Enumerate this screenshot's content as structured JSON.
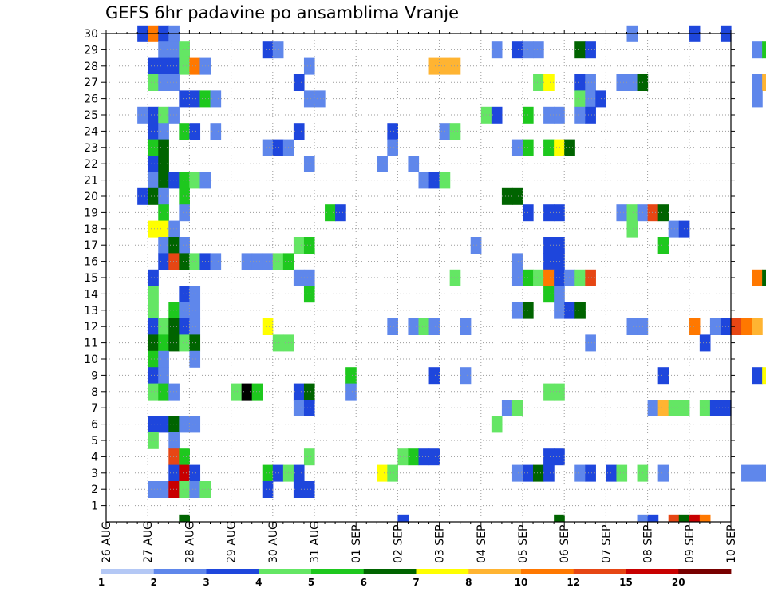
{
  "chart_data": {
    "type": "heatmap",
    "title": "GEFS 6hr padavine po ansamblima Vranje",
    "xlabel": "",
    "ylabel": "",
    "x_tick_labels": [
      "26 AUG",
      "27 AUG",
      "28 AUG",
      "29 AUG",
      "30 AUG",
      "31 AUG",
      "01 SEP",
      "02 SEP",
      "03 SEP",
      "04 SEP",
      "05 SEP",
      "06 SEP",
      "07 SEP",
      "08 SEP",
      "09 SEP",
      "10 SEP"
    ],
    "x_range_days": [
      0,
      15
    ],
    "steps_per_day": 4,
    "y_tick_labels": [
      1,
      2,
      3,
      4,
      5,
      6,
      7,
      8,
      9,
      10,
      11,
      12,
      13,
      14,
      15,
      16,
      17,
      18,
      19,
      20,
      21,
      22,
      23,
      24,
      25,
      26,
      27,
      28,
      29,
      30
    ],
    "y_range": [
      0,
      30
    ],
    "grid": true,
    "colorbar": {
      "levels": [
        "1",
        "2",
        "3",
        "4",
        "5",
        "6",
        "7",
        "8",
        "10",
        "12",
        "15",
        "20"
      ],
      "colors": [
        "#b4c8f5",
        "#5f87eb",
        "#1e46dc",
        "#64e664",
        "#1ec81e",
        "#006400",
        "#ffff00",
        "#ffb432",
        "#ff7800",
        "#e64614",
        "#c80000",
        "#780000"
      ]
    },
    "cells": [
      [
        30,
        0.75,
        2
      ],
      [
        30,
        1.0,
        8
      ],
      [
        30,
        1.25,
        2
      ],
      [
        30,
        1.5,
        1
      ],
      [
        30,
        12.5,
        1
      ],
      [
        30,
        14.0,
        2
      ],
      [
        30,
        14.75,
        2
      ],
      [
        29,
        1.25,
        1
      ],
      [
        29,
        1.5,
        1
      ],
      [
        29,
        1.75,
        3
      ],
      [
        29,
        3.75,
        2
      ],
      [
        29,
        4.0,
        1
      ],
      [
        29,
        9.25,
        1
      ],
      [
        29,
        9.75,
        2
      ],
      [
        29,
        10.0,
        1
      ],
      [
        29,
        10.25,
        1
      ],
      [
        29,
        11.25,
        5
      ],
      [
        29,
        11.5,
        2
      ],
      [
        29,
        15.5,
        1
      ],
      [
        29,
        15.75,
        4
      ],
      [
        28,
        1.0,
        2
      ],
      [
        28,
        1.25,
        2
      ],
      [
        28,
        1.5,
        2
      ],
      [
        28,
        1.75,
        3
      ],
      [
        28,
        2.0,
        8
      ],
      [
        28,
        2.25,
        1
      ],
      [
        28,
        4.75,
        1
      ],
      [
        28,
        7.75,
        7
      ],
      [
        28,
        8.0,
        7
      ],
      [
        28,
        8.25,
        7
      ],
      [
        27,
        1.0,
        3
      ],
      [
        27,
        1.25,
        1
      ],
      [
        27,
        1.5,
        1
      ],
      [
        27,
        4.5,
        2
      ],
      [
        27,
        10.25,
        3
      ],
      [
        27,
        10.5,
        6
      ],
      [
        27,
        11.25,
        2
      ],
      [
        27,
        11.5,
        1
      ],
      [
        27,
        12.25,
        1
      ],
      [
        27,
        12.5,
        1
      ],
      [
        27,
        12.75,
        5
      ],
      [
        27,
        15.5,
        1
      ],
      [
        27,
        15.75,
        7
      ],
      [
        26,
        1.75,
        2
      ],
      [
        26,
        2.0,
        2
      ],
      [
        26,
        2.25,
        4
      ],
      [
        26,
        2.5,
        1
      ],
      [
        26,
        4.75,
        1
      ],
      [
        26,
        5.0,
        1
      ],
      [
        26,
        11.25,
        3
      ],
      [
        26,
        11.5,
        1
      ],
      [
        26,
        11.75,
        2
      ],
      [
        26,
        15.5,
        1
      ],
      [
        25,
        0.75,
        1
      ],
      [
        25,
        1.0,
        2
      ],
      [
        25,
        1.25,
        3
      ],
      [
        25,
        1.5,
        1
      ],
      [
        25,
        9.0,
        3
      ],
      [
        25,
        9.25,
        2
      ],
      [
        25,
        10.0,
        4
      ],
      [
        25,
        10.5,
        1
      ],
      [
        25,
        10.75,
        1
      ],
      [
        25,
        11.25,
        1
      ],
      [
        25,
        11.5,
        2
      ],
      [
        24,
        1.0,
        2
      ],
      [
        24,
        1.25,
        1
      ],
      [
        24,
        1.75,
        4
      ],
      [
        24,
        2.0,
        2
      ],
      [
        24,
        2.5,
        1
      ],
      [
        24,
        4.5,
        2
      ],
      [
        24,
        6.75,
        2
      ],
      [
        24,
        8.0,
        1
      ],
      [
        24,
        8.25,
        3
      ],
      [
        23,
        1.0,
        4
      ],
      [
        23,
        1.25,
        5
      ],
      [
        23,
        3.75,
        1
      ],
      [
        23,
        4.0,
        2
      ],
      [
        23,
        4.25,
        1
      ],
      [
        23,
        6.75,
        1
      ],
      [
        23,
        9.75,
        1
      ],
      [
        23,
        10.0,
        4
      ],
      [
        23,
        10.5,
        4
      ],
      [
        23,
        10.75,
        6
      ],
      [
        23,
        11.0,
        5
      ],
      [
        22,
        1.0,
        2
      ],
      [
        22,
        1.25,
        5
      ],
      [
        22,
        4.75,
        1
      ],
      [
        22,
        6.5,
        1
      ],
      [
        22,
        7.25,
        1
      ],
      [
        21,
        1.0,
        1
      ],
      [
        21,
        1.25,
        5
      ],
      [
        21,
        1.5,
        2
      ],
      [
        21,
        1.75,
        4
      ],
      [
        21,
        2.0,
        3
      ],
      [
        21,
        2.25,
        1
      ],
      [
        21,
        7.5,
        1
      ],
      [
        21,
        7.75,
        2
      ],
      [
        21,
        8.0,
        3
      ],
      [
        20,
        0.75,
        2
      ],
      [
        20,
        1.0,
        5
      ],
      [
        20,
        1.25,
        1
      ],
      [
        20,
        1.75,
        4
      ],
      [
        20,
        9.5,
        5
      ],
      [
        20,
        9.75,
        5
      ],
      [
        19,
        1.25,
        4
      ],
      [
        19,
        1.75,
        1
      ],
      [
        19,
        5.25,
        4
      ],
      [
        19,
        5.5,
        2
      ],
      [
        19,
        10.0,
        2
      ],
      [
        19,
        10.5,
        2
      ],
      [
        19,
        10.75,
        2
      ],
      [
        19,
        12.25,
        1
      ],
      [
        19,
        12.5,
        3
      ],
      [
        19,
        12.75,
        1
      ],
      [
        19,
        13.0,
        9
      ],
      [
        19,
        13.25,
        5
      ],
      [
        18,
        1.0,
        6
      ],
      [
        18,
        1.25,
        6
      ],
      [
        18,
        1.5,
        1
      ],
      [
        18,
        12.5,
        3
      ],
      [
        18,
        13.5,
        1
      ],
      [
        18,
        13.75,
        2
      ],
      [
        17,
        1.25,
        1
      ],
      [
        17,
        1.5,
        5
      ],
      [
        17,
        1.75,
        1
      ],
      [
        17,
        4.5,
        3
      ],
      [
        17,
        4.75,
        4
      ],
      [
        17,
        8.75,
        1
      ],
      [
        17,
        10.5,
        2
      ],
      [
        17,
        10.75,
        2
      ],
      [
        17,
        13.25,
        4
      ],
      [
        16,
        1.25,
        2
      ],
      [
        16,
        1.5,
        9
      ],
      [
        16,
        1.75,
        5
      ],
      [
        16,
        2.0,
        3
      ],
      [
        16,
        2.25,
        2
      ],
      [
        16,
        2.5,
        1
      ],
      [
        16,
        3.25,
        1
      ],
      [
        16,
        3.5,
        1
      ],
      [
        16,
        3.75,
        1
      ],
      [
        16,
        4.0,
        3
      ],
      [
        16,
        4.25,
        4
      ],
      [
        16,
        9.75,
        1
      ],
      [
        16,
        10.5,
        2
      ],
      [
        16,
        10.75,
        2
      ],
      [
        15,
        1.0,
        2
      ],
      [
        15,
        4.5,
        1
      ],
      [
        15,
        4.75,
        1
      ],
      [
        15,
        8.25,
        3
      ],
      [
        15,
        9.75,
        1
      ],
      [
        15,
        10.0,
        4
      ],
      [
        15,
        10.25,
        3
      ],
      [
        15,
        10.5,
        8
      ],
      [
        15,
        10.75,
        2
      ],
      [
        15,
        11.0,
        1
      ],
      [
        15,
        11.25,
        3
      ],
      [
        15,
        11.5,
        9
      ],
      [
        15,
        15.5,
        8
      ],
      [
        15,
        15.75,
        5
      ],
      [
        14,
        1.0,
        3
      ],
      [
        14,
        1.75,
        2
      ],
      [
        14,
        2.0,
        1
      ],
      [
        14,
        4.75,
        4
      ],
      [
        14,
        10.5,
        4
      ],
      [
        14,
        10.75,
        1
      ],
      [
        13,
        1.0,
        3
      ],
      [
        13,
        1.5,
        4
      ],
      [
        13,
        1.75,
        1
      ],
      [
        13,
        2.0,
        1
      ],
      [
        13,
        9.75,
        1
      ],
      [
        13,
        10.0,
        5
      ],
      [
        13,
        10.75,
        1
      ],
      [
        13,
        11.0,
        2
      ],
      [
        13,
        11.25,
        5
      ],
      [
        12,
        1.0,
        2
      ],
      [
        12,
        1.25,
        3
      ],
      [
        12,
        1.5,
        5
      ],
      [
        12,
        1.75,
        2
      ],
      [
        12,
        2.0,
        1
      ],
      [
        12,
        3.75,
        6
      ],
      [
        12,
        6.75,
        1
      ],
      [
        12,
        7.25,
        1
      ],
      [
        12,
        7.5,
        3
      ],
      [
        12,
        7.75,
        1
      ],
      [
        12,
        8.5,
        1
      ],
      [
        12,
        12.5,
        1
      ],
      [
        12,
        12.75,
        1
      ],
      [
        12,
        14.0,
        8
      ],
      [
        12,
        14.5,
        1
      ],
      [
        12,
        14.75,
        2
      ],
      [
        12,
        15.0,
        9
      ],
      [
        12,
        15.25,
        8
      ],
      [
        12,
        15.5,
        7
      ],
      [
        11,
        1.0,
        5
      ],
      [
        11,
        1.25,
        4
      ],
      [
        11,
        1.5,
        5
      ],
      [
        11,
        1.75,
        3
      ],
      [
        11,
        2.0,
        5
      ],
      [
        11,
        4.0,
        3
      ],
      [
        11,
        4.25,
        3
      ],
      [
        11,
        11.5,
        1
      ],
      [
        11,
        14.25,
        2
      ],
      [
        10,
        1.0,
        4
      ],
      [
        10,
        1.25,
        1
      ],
      [
        10,
        2.0,
        1
      ],
      [
        9,
        1.0,
        2
      ],
      [
        9,
        1.25,
        1
      ],
      [
        9,
        5.75,
        4
      ],
      [
        9,
        7.75,
        2
      ],
      [
        9,
        8.5,
        1
      ],
      [
        9,
        13.25,
        2
      ],
      [
        9,
        15.5,
        2
      ],
      [
        9,
        15.75,
        6
      ],
      [
        8,
        1.0,
        3
      ],
      [
        8,
        1.25,
        4
      ],
      [
        8,
        1.5,
        1
      ],
      [
        8,
        3.0,
        3
      ],
      [
        8,
        3.25,
        12
      ],
      [
        8,
        3.5,
        4
      ],
      [
        8,
        4.5,
        2
      ],
      [
        8,
        4.75,
        5
      ],
      [
        8,
        5.75,
        1
      ],
      [
        8,
        10.5,
        3
      ],
      [
        8,
        10.75,
        3
      ],
      [
        7,
        4.5,
        1
      ],
      [
        7,
        4.75,
        2
      ],
      [
        7,
        9.5,
        1
      ],
      [
        7,
        9.75,
        3
      ],
      [
        7,
        13.0,
        1
      ],
      [
        7,
        13.25,
        7
      ],
      [
        7,
        13.5,
        3
      ],
      [
        7,
        13.75,
        3
      ],
      [
        7,
        14.25,
        3
      ],
      [
        7,
        14.5,
        2
      ],
      [
        7,
        14.75,
        2
      ],
      [
        6,
        1.0,
        2
      ],
      [
        6,
        1.25,
        2
      ],
      [
        6,
        1.5,
        5
      ],
      [
        6,
        1.75,
        1
      ],
      [
        6,
        2.0,
        1
      ],
      [
        6,
        9.25,
        3
      ],
      [
        5,
        1.0,
        3
      ],
      [
        5,
        1.5,
        1
      ],
      [
        4,
        1.5,
        9
      ],
      [
        4,
        1.75,
        4
      ],
      [
        4,
        4.75,
        3
      ],
      [
        4,
        7.0,
        3
      ],
      [
        4,
        7.25,
        4
      ],
      [
        4,
        7.5,
        2
      ],
      [
        4,
        7.75,
        2
      ],
      [
        4,
        10.5,
        2
      ],
      [
        4,
        10.75,
        2
      ],
      [
        3,
        1.5,
        2
      ],
      [
        3,
        1.75,
        10
      ],
      [
        3,
        2.0,
        2
      ],
      [
        3,
        3.75,
        4
      ],
      [
        3,
        4.0,
        2
      ],
      [
        3,
        4.25,
        3
      ],
      [
        3,
        4.5,
        2
      ],
      [
        3,
        6.5,
        6
      ],
      [
        3,
        6.75,
        3
      ],
      [
        3,
        9.75,
        1
      ],
      [
        3,
        10.0,
        2
      ],
      [
        3,
        10.25,
        5
      ],
      [
        3,
        10.5,
        2
      ],
      [
        3,
        11.25,
        1
      ],
      [
        3,
        11.5,
        2
      ],
      [
        3,
        12.0,
        2
      ],
      [
        3,
        12.25,
        3
      ],
      [
        3,
        12.75,
        3
      ],
      [
        3,
        13.25,
        1
      ],
      [
        3,
        15.25,
        1
      ],
      [
        3,
        15.5,
        1
      ],
      [
        3,
        15.75,
        1
      ],
      [
        2,
        1.0,
        1
      ],
      [
        2,
        1.25,
        1
      ],
      [
        2,
        1.5,
        10
      ],
      [
        2,
        1.75,
        3
      ],
      [
        2,
        2.0,
        1
      ],
      [
        2,
        2.25,
        3
      ],
      [
        2,
        3.75,
        2
      ],
      [
        2,
        4.5,
        2
      ],
      [
        2,
        4.75,
        2
      ]
    ],
    "bottom_row": [
      [
        1.75,
        5
      ],
      [
        7.0,
        2
      ],
      [
        10.75,
        5
      ],
      [
        12.75,
        1
      ],
      [
        13.0,
        2
      ],
      [
        13.5,
        9
      ],
      [
        13.75,
        5
      ],
      [
        14.0,
        10
      ],
      [
        14.25,
        8
      ]
    ]
  }
}
